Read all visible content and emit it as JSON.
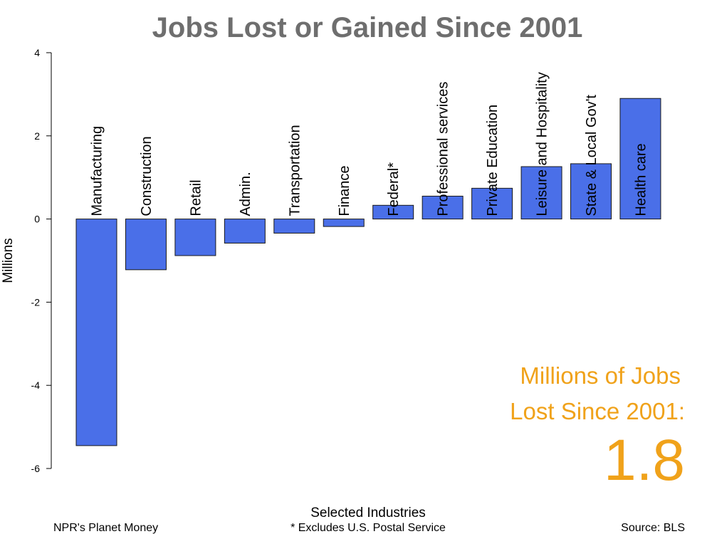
{
  "chart_data": {
    "type": "bar",
    "title": "Jobs Lost or Gained Since 2001",
    "xlabel": "Selected Industries",
    "ylabel": "Millions",
    "ylim": [
      -6,
      4
    ],
    "yticks": [
      "-6",
      "-4",
      "-2",
      "0",
      "2",
      "4"
    ],
    "grid": false,
    "categories": [
      "Manufacturing",
      "Construction",
      "Retail",
      "Admin.",
      "Transportation",
      "Finance",
      "Federal*",
      "Professional services",
      "Private Education",
      "Leisure and Hospitality",
      "State & Local Gov't",
      "Health care"
    ],
    "values": [
      -5.45,
      -1.22,
      -0.88,
      -0.58,
      -0.34,
      -0.18,
      0.33,
      0.55,
      0.74,
      1.26,
      1.33,
      2.9
    ],
    "bar_color": "#4a6fe8",
    "bar_outline": "#1a1a1a"
  },
  "callout": {
    "line1": "Millions of Jobs",
    "line2": "Lost Since 2001:",
    "value": "1.8",
    "color": "#f0a21a"
  },
  "footer": {
    "left": "NPR's Planet Money",
    "center": "* Excludes U.S. Postal Service",
    "right": "Source: BLS"
  }
}
